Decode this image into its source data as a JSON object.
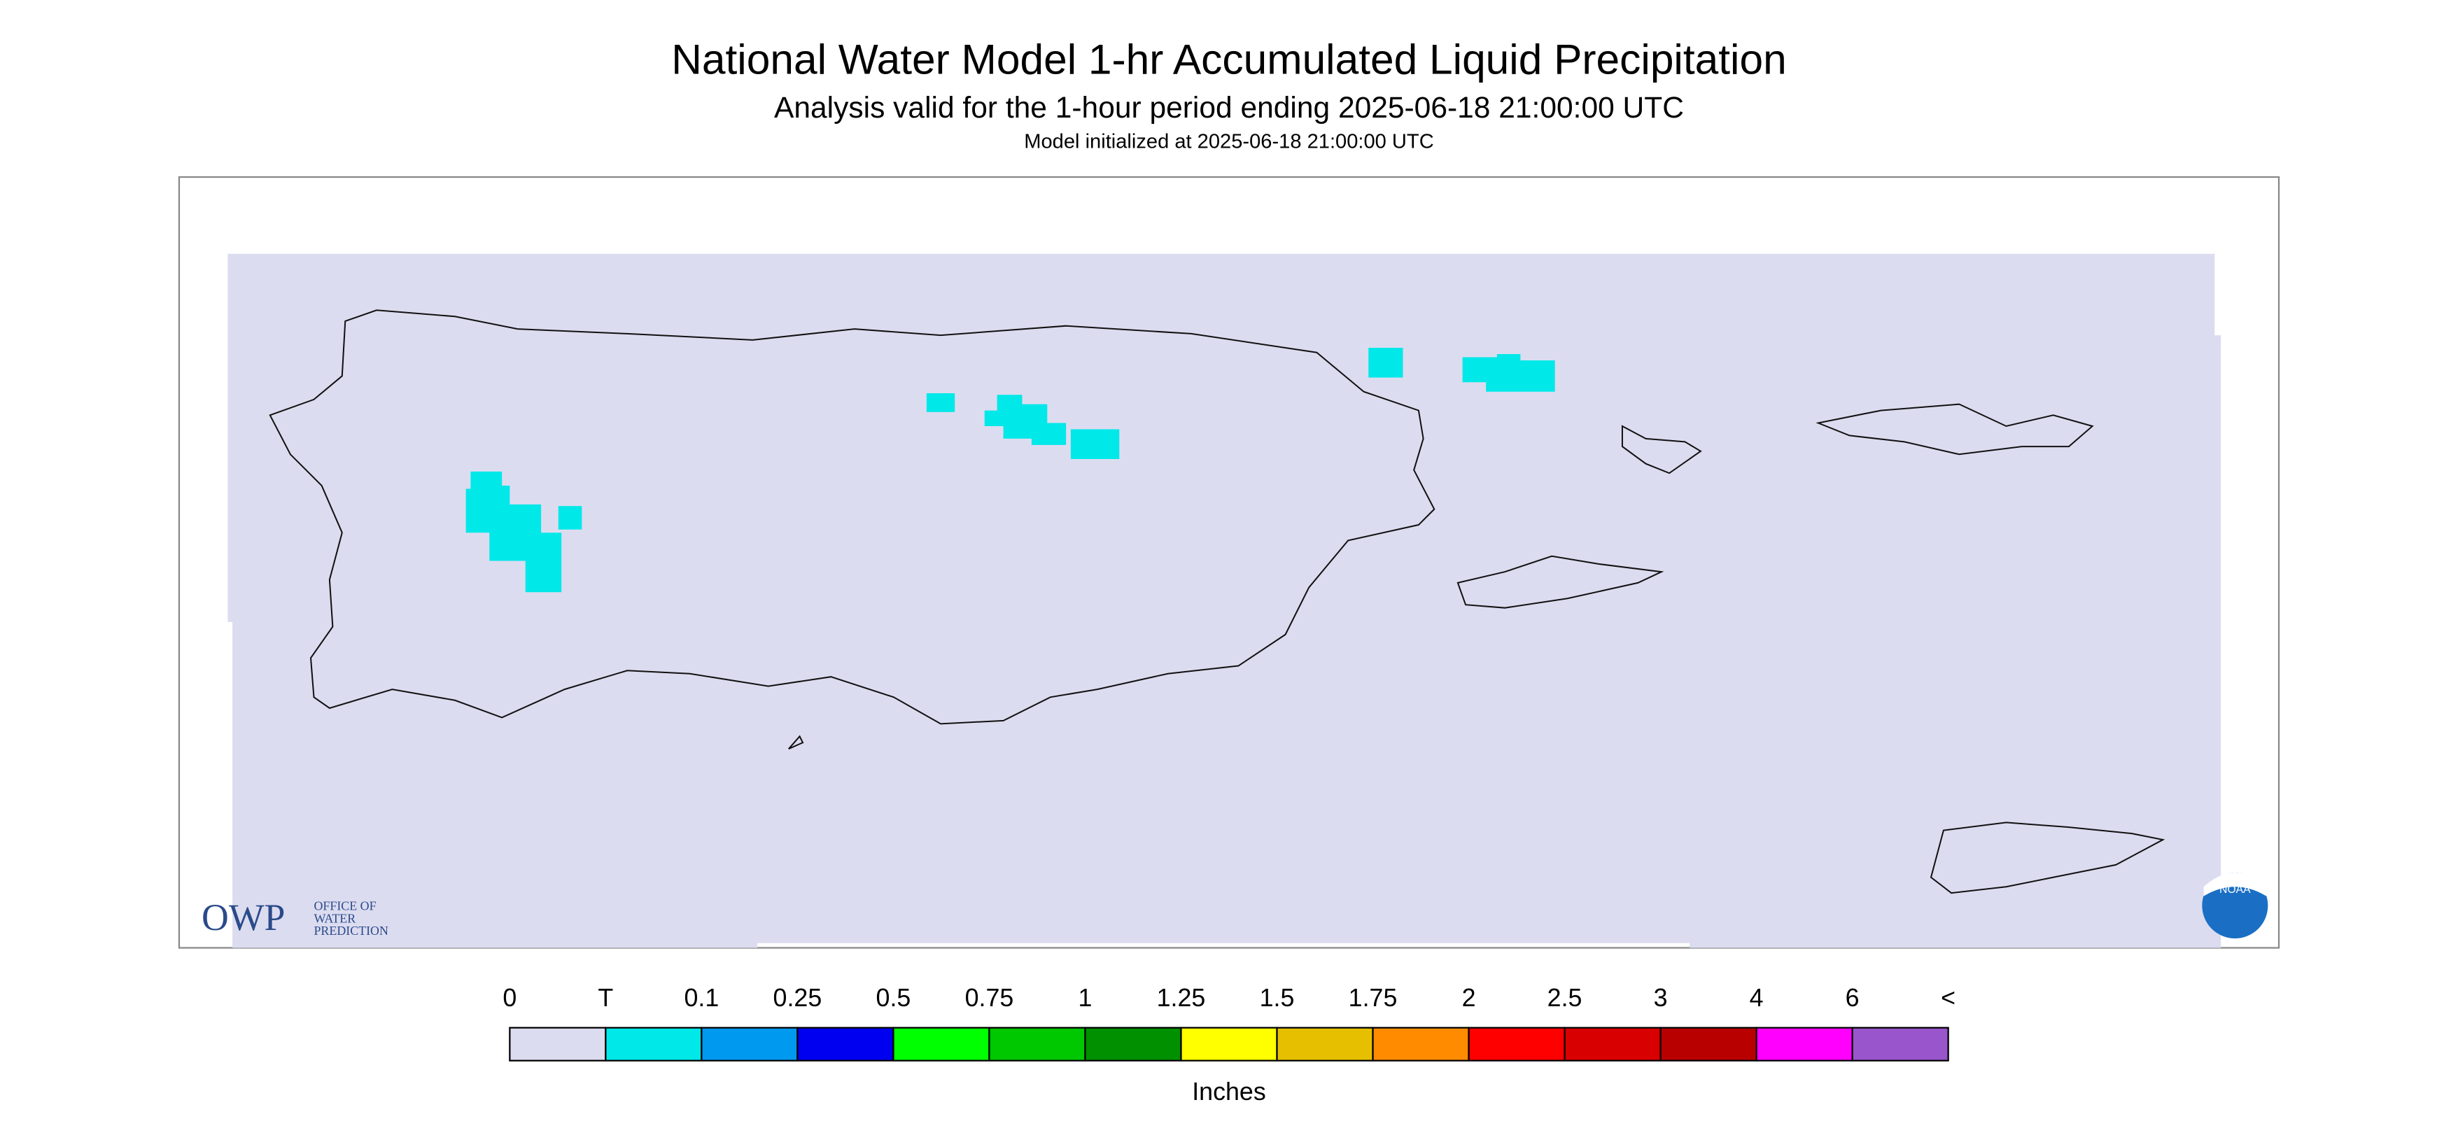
{
  "header": {
    "title": "National Water Model 1-hr Accumulated Liquid Precipitation",
    "subtitle": "Analysis valid for the 1-hour period ending 2025-06-18 21:00:00 UTC",
    "init": "Model initialized at 2025-06-18 21:00:00 UTC"
  },
  "logos": {
    "owp": "OWP",
    "owp_text": [
      "OFFICE OF",
      "WATER",
      "PREDICTION"
    ],
    "noaa": "NOAA"
  },
  "legend": {
    "labels": [
      "0",
      "T",
      "0.1",
      "0.25",
      "0.5",
      "0.75",
      "1",
      "1.25",
      "1.5",
      "1.75",
      "2",
      "2.5",
      "3",
      "4",
      "6",
      "<"
    ],
    "colors": [
      "#dcdcf0",
      "#00e8e8",
      "#0099f0",
      "#0000f0",
      "#00ff00",
      "#00c800",
      "#009000",
      "#ffff00",
      "#e6c000",
      "#ff8c00",
      "#ff0000",
      "#d80000",
      "#b80000",
      "#ff00ff",
      "#9955cc"
    ],
    "title": "Inches"
  }
}
